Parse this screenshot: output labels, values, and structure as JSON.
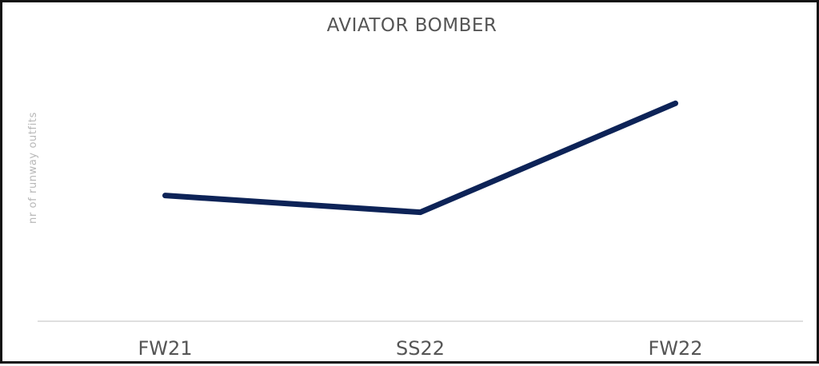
{
  "chart_data": {
    "type": "line",
    "title": "AVIATOR BOMBER",
    "xlabel": "",
    "ylabel": "nr of runway outfits",
    "categories": [
      "FW21",
      "SS22",
      "FW22"
    ],
    "series": [
      {
        "values": [
          6.0,
          5.2,
          10.4
        ]
      }
    ],
    "ylim": [
      0,
      13.5
    ],
    "y_ticks_shown": false,
    "grid": false,
    "legend": "none",
    "colors": {
      "line": "#0d2357",
      "axis": "#cccccc",
      "title": "#555555",
      "ylabel": "#b8b8b8",
      "tick": "#555555"
    }
  }
}
